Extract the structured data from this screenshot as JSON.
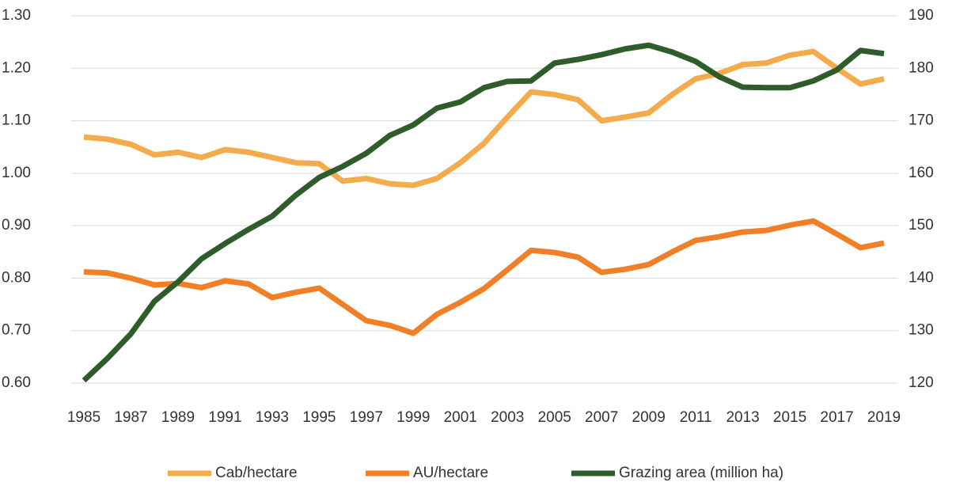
{
  "chart_data": {
    "type": "line",
    "categories": [
      "1985",
      null,
      "1987",
      null,
      "1989",
      null,
      "1991",
      null,
      "1993",
      null,
      "1995",
      null,
      "1997",
      null,
      "1999",
      null,
      "2001",
      null,
      "2003",
      null,
      "2005",
      null,
      "2007",
      null,
      "2009",
      null,
      "2011",
      null,
      "2013",
      null,
      "2015",
      null,
      "2017",
      null,
      "2019"
    ],
    "ylim": [
      0.6,
      1.3
    ],
    "yticks": [
      {
        "value": 0.6,
        "label": "0.60"
      },
      {
        "value": 0.7,
        "label": "0.70"
      },
      {
        "value": 0.8,
        "label": "0.80"
      },
      {
        "value": 0.9,
        "label": "0.90"
      },
      {
        "value": 1.0,
        "label": "1.00"
      },
      {
        "value": 1.1,
        "label": "1.10"
      },
      {
        "value": 1.2,
        "label": "1.20"
      },
      {
        "value": 1.3,
        "label": "1.30"
      }
    ],
    "y2lim": [
      120,
      190
    ],
    "y2ticks": [
      120,
      130,
      140,
      150,
      160,
      170,
      180,
      190
    ],
    "grid": true,
    "legend": "bottom",
    "series": [
      {
        "name": "Cab/hectare",
        "color": "#f4ab4c",
        "values": [
          1.069,
          1.065,
          1.055,
          1.035,
          1.04,
          1.03,
          1.045,
          1.04,
          1.03,
          1.02,
          1.018,
          0.985,
          0.99,
          0.98,
          0.977,
          0.99,
          1.02,
          1.057,
          1.107,
          1.155,
          1.15,
          1.14,
          1.1,
          1.107,
          1.115,
          1.15,
          1.18,
          1.19,
          1.207,
          1.21,
          1.225,
          1.232,
          1.2,
          1.17,
          1.18
        ]
      },
      {
        "name": "AU/hectare",
        "color": "#f07f27",
        "values": [
          0.812,
          0.81,
          0.8,
          0.787,
          0.79,
          0.782,
          0.795,
          0.789,
          0.763,
          0.773,
          0.781,
          0.75,
          0.719,
          0.71,
          0.695,
          0.731,
          0.754,
          0.78,
          0.816,
          0.853,
          0.849,
          0.84,
          0.811,
          0.817,
          0.826,
          0.85,
          0.872,
          0.879,
          0.888,
          0.891,
          0.901,
          0.909,
          0.884,
          0.858,
          0.867
        ]
      },
      {
        "name": "Grazing area (million ha)",
        "color": "#2e5c2a",
        "axis": "y2",
        "values": [
          120.5,
          124.7,
          129.4,
          135.6,
          139.3,
          143.7,
          146.6,
          149.3,
          151.8,
          155.8,
          159.2,
          161.3,
          163.8,
          167.2,
          169.2,
          172.4,
          173.6,
          176.3,
          177.5,
          177.6,
          181.0,
          181.7,
          182.6,
          183.7,
          184.4,
          183.1,
          181.3,
          178.4,
          176.4,
          176.3,
          176.3,
          177.6,
          179.7,
          183.4,
          182.8
        ]
      }
    ]
  }
}
